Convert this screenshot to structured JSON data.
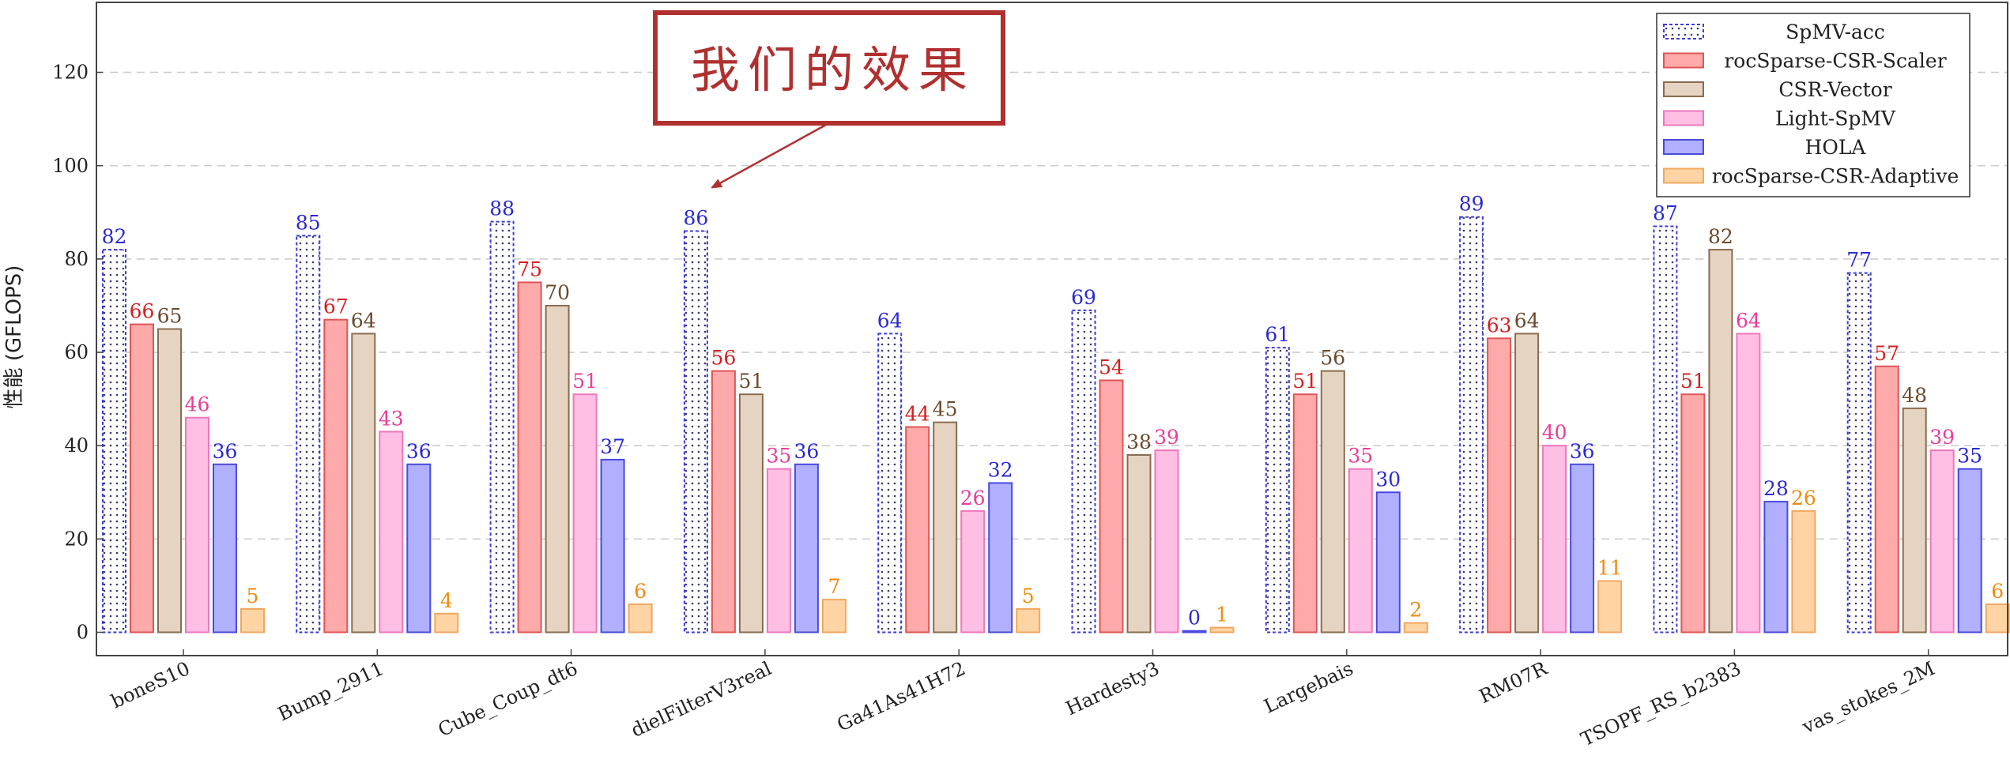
{
  "chart_data": {
    "type": "bar",
    "title": "",
    "xlabel": "",
    "ylabel": "性能 (GFLOPS)",
    "ylim": [
      -5,
      135
    ],
    "yticks": [
      0,
      20,
      40,
      60,
      80,
      100,
      120
    ],
    "grid": "horizontal dashed",
    "legend_position": "top-right",
    "categories": [
      "boneS10",
      "Bump_2911",
      "Cube_Coup_dt6",
      "dielFilterV3real",
      "Ga41As41H72",
      "Hardesty3",
      "Largebais",
      "RM07R",
      "TSOPF_RS_b2383",
      "vas_stokes_2M"
    ],
    "series": [
      {
        "name": "SpMV-acc",
        "values": [
          82,
          85,
          88,
          86,
          64,
          69,
          61,
          89,
          87,
          77
        ],
        "labels": [
          "82",
          "85",
          "88",
          "86",
          "64",
          "69",
          "61",
          "89",
          "87",
          "77"
        ]
      },
      {
        "name": "rocSparse-CSR-Scaler",
        "values": [
          66,
          67,
          75,
          56,
          44,
          54,
          51,
          63,
          51,
          57
        ],
        "labels": [
          "66",
          "67",
          "75",
          "56",
          "44",
          "54",
          "51",
          "63",
          "51",
          "57"
        ]
      },
      {
        "name": "CSR-Vector",
        "values": [
          65,
          64,
          70,
          51,
          45,
          38,
          56,
          64,
          82,
          48
        ],
        "labels": [
          "65",
          "64",
          "70",
          "51",
          "45",
          "38",
          "56",
          "64",
          "82",
          "48"
        ]
      },
      {
        "name": "Light-SpMV",
        "values": [
          46,
          43,
          51,
          35,
          26,
          39,
          35,
          40,
          64,
          39
        ],
        "labels": [
          "46",
          "43",
          "51",
          "35",
          "26",
          "39",
          "35",
          "40",
          "64",
          "39"
        ]
      },
      {
        "name": "HOLA",
        "values": [
          36,
          36,
          37,
          36,
          32,
          0.3,
          30,
          36,
          28,
          35
        ],
        "labels": [
          "36",
          "36",
          "37",
          "36",
          "32",
          "0",
          "30",
          "36",
          "28",
          "35"
        ]
      },
      {
        "name": "rocSparse-CSR-Adaptive",
        "values": [
          5,
          4,
          6,
          7,
          5,
          1,
          2,
          11,
          26,
          6
        ],
        "labels": [
          "5",
          "4",
          "6",
          "7",
          "5",
          "1",
          "2",
          "11",
          "26",
          "6"
        ]
      }
    ],
    "colors": {
      "SpMV-acc": {
        "fill": "#ffffff",
        "stroke": "#3a3ad8",
        "label": "#2a2ad0"
      },
      "rocSparse-CSR-Scaler": {
        "fill": "#ffaaaa",
        "stroke": "#e05555",
        "label": "#d42020"
      },
      "CSR-Vector": {
        "fill": "#e6d4c2",
        "stroke": "#8a6c50",
        "label": "#6b4a2e"
      },
      "Light-SpMV": {
        "fill": "#ffbfe4",
        "stroke": "#ee77bb",
        "label": "#e83e98"
      },
      "HOLA": {
        "fill": "#b0b0ff",
        "stroke": "#4a4ae0",
        "label": "#2a2ad0"
      },
      "rocSparse-CSR-Adaptive": {
        "fill": "#ffd4a4",
        "stroke": "#f0a860",
        "label": "#f08a10"
      }
    },
    "annotations": [
      {
        "text": "我们的效果",
        "points_to_category": "dielFilterV3real",
        "points_to_series": "SpMV-acc",
        "color": "#b03030"
      }
    ]
  }
}
